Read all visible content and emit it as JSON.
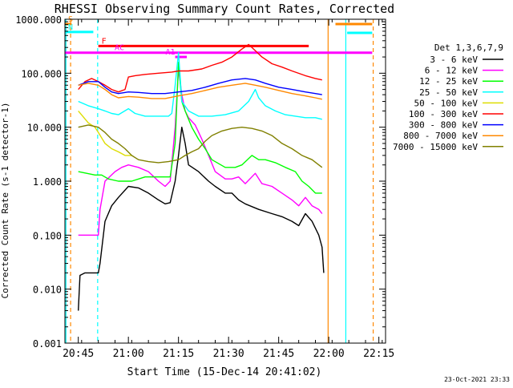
{
  "chart_data": {
    "type": "line",
    "title": "RHESSI Observing Summary Count Rates, Corrected",
    "xlabel": "Start Time (15-Dec-14 20:41:02)",
    "ylabel": "Corrected Count Rate (s-1 detector-1)",
    "x_unit": "minutes since 20:41:02",
    "xlim": [
      0,
      96
    ],
    "ylim": [
      0.001,
      1000
    ],
    "y_scale": "log",
    "x_ticks": [
      {
        "value": 4,
        "label": "20:45"
      },
      {
        "value": 19,
        "label": "21:00"
      },
      {
        "value": 34,
        "label": "21:15"
      },
      {
        "value": 49,
        "label": "21:30"
      },
      {
        "value": 64,
        "label": "21:45"
      },
      {
        "value": 79,
        "label": "22:00"
      },
      {
        "value": 94,
        "label": "22:15"
      }
    ],
    "y_ticks": [
      {
        "value": 1000,
        "label": "1000.000"
      },
      {
        "value": 100,
        "label": "100.000"
      },
      {
        "value": 10,
        "label": "10.000"
      },
      {
        "value": 1,
        "label": "1.000"
      },
      {
        "value": 0.1,
        "label": "0.100"
      },
      {
        "value": 0.01,
        "label": "0.010"
      },
      {
        "value": 0.001,
        "label": "0.001"
      }
    ],
    "legend_title": "Det 1,3,6,7,9",
    "legend_position": "right",
    "footer_date": "23-Oct-2021 23:33",
    "series": [
      {
        "name": "3 - 6 keV",
        "color": "#000000",
        "points": [
          [
            4,
            0.004
          ],
          [
            4.5,
            0.018
          ],
          [
            6,
            0.02
          ],
          [
            10,
            0.02
          ],
          [
            10.5,
            0.03
          ],
          [
            12,
            0.18
          ],
          [
            14,
            0.35
          ],
          [
            16,
            0.5
          ],
          [
            19,
            0.8
          ],
          [
            22,
            0.75
          ],
          [
            25,
            0.6
          ],
          [
            28,
            0.45
          ],
          [
            30,
            0.38
          ],
          [
            31.5,
            0.4
          ],
          [
            33,
            1.0
          ],
          [
            34,
            3.0
          ],
          [
            35,
            10.0
          ],
          [
            36,
            5.0
          ],
          [
            37,
            2.0
          ],
          [
            40,
            1.5
          ],
          [
            43,
            1.0
          ],
          [
            45,
            0.8
          ],
          [
            48,
            0.6
          ],
          [
            50,
            0.6
          ],
          [
            52,
            0.45
          ],
          [
            54,
            0.38
          ],
          [
            58,
            0.3
          ],
          [
            62,
            0.25
          ],
          [
            65,
            0.22
          ],
          [
            68,
            0.18
          ],
          [
            70,
            0.15
          ],
          [
            72,
            0.25
          ],
          [
            74,
            0.18
          ],
          [
            76,
            0.1
          ],
          [
            77,
            0.06
          ],
          [
            77.5,
            0.02
          ]
        ]
      },
      {
        "name": "6 - 12 keV",
        "color": "#ff00ff",
        "points": [
          [
            4,
            0.1
          ],
          [
            10,
            0.1
          ],
          [
            10.5,
            0.3
          ],
          [
            12,
            1.0
          ],
          [
            15,
            1.5
          ],
          [
            17,
            1.8
          ],
          [
            19,
            2.0
          ],
          [
            22,
            1.8
          ],
          [
            25,
            1.5
          ],
          [
            28,
            1.0
          ],
          [
            30,
            0.8
          ],
          [
            31.5,
            1.0
          ],
          [
            33,
            10
          ],
          [
            34,
            120
          ],
          [
            35,
            40
          ],
          [
            36,
            20
          ],
          [
            37,
            15
          ],
          [
            39,
            11
          ],
          [
            41,
            6
          ],
          [
            43,
            3
          ],
          [
            45,
            1.5
          ],
          [
            48,
            1.1
          ],
          [
            50,
            1.1
          ],
          [
            52,
            1.2
          ],
          [
            54,
            0.9
          ],
          [
            57,
            1.4
          ],
          [
            59,
            0.9
          ],
          [
            62,
            0.8
          ],
          [
            65,
            0.6
          ],
          [
            68,
            0.45
          ],
          [
            70,
            0.35
          ],
          [
            72,
            0.5
          ],
          [
            74,
            0.35
          ],
          [
            76,
            0.3
          ],
          [
            77,
            0.25
          ]
        ]
      },
      {
        "name": "12 - 25 keV",
        "color": "#00ff00",
        "points": [
          [
            4,
            1.5
          ],
          [
            9,
            1.3
          ],
          [
            11,
            1.3
          ],
          [
            13,
            1.1
          ],
          [
            16,
            1.0
          ],
          [
            20,
            1.0
          ],
          [
            24,
            1.2
          ],
          [
            28,
            1.2
          ],
          [
            31.5,
            1.2
          ],
          [
            33,
            5
          ],
          [
            34,
            160
          ],
          [
            35,
            30
          ],
          [
            36,
            20
          ],
          [
            38,
            10
          ],
          [
            40,
            6
          ],
          [
            42,
            4
          ],
          [
            44,
            2.5
          ],
          [
            48,
            1.8
          ],
          [
            51,
            1.8
          ],
          [
            53,
            2.0
          ],
          [
            56,
            3
          ],
          [
            58,
            2.5
          ],
          [
            60,
            2.5
          ],
          [
            63,
            2.2
          ],
          [
            66,
            1.8
          ],
          [
            69,
            1.5
          ],
          [
            71,
            1.0
          ],
          [
            73,
            0.8
          ],
          [
            75,
            0.6
          ],
          [
            77,
            0.6
          ]
        ]
      },
      {
        "name": "25 - 50 keV",
        "color": "#00ffff",
        "points": [
          [
            4,
            30
          ],
          [
            7,
            25
          ],
          [
            10,
            22
          ],
          [
            12,
            20
          ],
          [
            14,
            18
          ],
          [
            16,
            17
          ],
          [
            19,
            22
          ],
          [
            21,
            18
          ],
          [
            24,
            16
          ],
          [
            28,
            16
          ],
          [
            31,
            16
          ],
          [
            32,
            18
          ],
          [
            33,
            60
          ],
          [
            34,
            240
          ],
          [
            35,
            30
          ],
          [
            37,
            20
          ],
          [
            40,
            16
          ],
          [
            44,
            16
          ],
          [
            48,
            17
          ],
          [
            52,
            20
          ],
          [
            55,
            30
          ],
          [
            57,
            50
          ],
          [
            58,
            35
          ],
          [
            60,
            25
          ],
          [
            63,
            20
          ],
          [
            66,
            17
          ],
          [
            69,
            16
          ],
          [
            72,
            15
          ],
          [
            75,
            15
          ],
          [
            77,
            14
          ]
        ]
      },
      {
        "name": "50 - 100 keV",
        "color": "#dddd00",
        "points": [
          [
            4,
            20
          ],
          [
            7,
            12
          ],
          [
            9,
            10
          ],
          [
            10,
            8
          ],
          [
            12,
            5
          ],
          [
            14,
            4
          ],
          [
            16,
            3.5
          ],
          [
            18,
            3.0
          ],
          [
            20,
            3.0
          ]
        ]
      },
      {
        "name": "100 - 300 keV",
        "color": "#ff0000",
        "points": [
          [
            4,
            50
          ],
          [
            6,
            70
          ],
          [
            8,
            80
          ],
          [
            10,
            70
          ],
          [
            12,
            60
          ],
          [
            14,
            50
          ],
          [
            16,
            45
          ],
          [
            18,
            50
          ],
          [
            19,
            85
          ],
          [
            21,
            90
          ],
          [
            24,
            95
          ],
          [
            28,
            100
          ],
          [
            32,
            105
          ],
          [
            34,
            110
          ],
          [
            37,
            110
          ],
          [
            41,
            120
          ],
          [
            44,
            140
          ],
          [
            47,
            160
          ],
          [
            50,
            200
          ],
          [
            53,
            280
          ],
          [
            55,
            340
          ],
          [
            56,
            300
          ],
          [
            59,
            200
          ],
          [
            62,
            150
          ],
          [
            65,
            130
          ],
          [
            68,
            110
          ],
          [
            72,
            90
          ],
          [
            75,
            80
          ],
          [
            77,
            75
          ]
        ]
      },
      {
        "name": "300 - 800 keV",
        "color": "#0000ff",
        "points": [
          [
            4,
            60
          ],
          [
            7,
            70
          ],
          [
            10,
            70
          ],
          [
            12,
            55
          ],
          [
            14,
            45
          ],
          [
            16,
            42
          ],
          [
            19,
            45
          ],
          [
            22,
            44
          ],
          [
            26,
            42
          ],
          [
            30,
            42
          ],
          [
            34,
            45
          ],
          [
            38,
            48
          ],
          [
            42,
            55
          ],
          [
            46,
            65
          ],
          [
            50,
            75
          ],
          [
            54,
            80
          ],
          [
            57,
            75
          ],
          [
            60,
            65
          ],
          [
            64,
            55
          ],
          [
            68,
            50
          ],
          [
            72,
            45
          ],
          [
            75,
            42
          ],
          [
            77,
            40
          ]
        ]
      },
      {
        "name": "800 - 7000 keV",
        "color": "#ff8800",
        "points": [
          [
            4,
            60
          ],
          [
            7,
            65
          ],
          [
            10,
            60
          ],
          [
            12,
            50
          ],
          [
            14,
            40
          ],
          [
            16,
            35
          ],
          [
            19,
            37
          ],
          [
            22,
            36
          ],
          [
            26,
            34
          ],
          [
            30,
            34
          ],
          [
            34,
            38
          ],
          [
            38,
            42
          ],
          [
            42,
            48
          ],
          [
            46,
            55
          ],
          [
            50,
            60
          ],
          [
            54,
            65
          ],
          [
            57,
            60
          ],
          [
            60,
            55
          ],
          [
            64,
            48
          ],
          [
            68,
            42
          ],
          [
            72,
            38
          ],
          [
            75,
            35
          ],
          [
            77,
            33
          ]
        ]
      },
      {
        "name": "7000 - 15000 keV",
        "color": "#808000",
        "points": [
          [
            4,
            10
          ],
          [
            7,
            11
          ],
          [
            10,
            10
          ],
          [
            12,
            8
          ],
          [
            14,
            6
          ],
          [
            16,
            5
          ],
          [
            18,
            4
          ],
          [
            20,
            3
          ],
          [
            22,
            2.5
          ],
          [
            25,
            2.3
          ],
          [
            28,
            2.2
          ],
          [
            31,
            2.3
          ],
          [
            34,
            2.5
          ],
          [
            36,
            3
          ],
          [
            38,
            3.5
          ],
          [
            40,
            4
          ],
          [
            42,
            5.5
          ],
          [
            44,
            7
          ],
          [
            47,
            8.5
          ],
          [
            50,
            9.5
          ],
          [
            53,
            10
          ],
          [
            56,
            9.5
          ],
          [
            59,
            8.5
          ],
          [
            62,
            7
          ],
          [
            65,
            5
          ],
          [
            68,
            4
          ],
          [
            71,
            3
          ],
          [
            74,
            2.5
          ],
          [
            76,
            2
          ],
          [
            77,
            1.8
          ]
        ]
      }
    ],
    "attenuator_states": [
      {
        "label": "S",
        "color": "#ff8800",
        "x_start": 0,
        "x_end": 2,
        "y": 1400
      },
      {
        "label": "N",
        "color": "#00ffff",
        "x_start": 0,
        "x_end": 8.5,
        "y": 580
      },
      {
        "label": "F",
        "color": "#ff0000",
        "x_start": 10,
        "x_end": 73,
        "y": 320
      },
      {
        "label": "AC",
        "color": "#ff00ff",
        "x_start": 0,
        "x_end": 92,
        "y": 240
      },
      {
        "label": "A1",
        "color": "#ff00ff",
        "x_start": 33,
        "x_end": 36.5,
        "y": 200
      },
      {
        "label": "",
        "color": "#ff8800",
        "x_start": 81,
        "x_end": 92,
        "y": 1000
      },
      {
        "label": "",
        "color": "#00ffff",
        "x_start": 84.5,
        "x_end": 92,
        "y": 560
      }
    ],
    "vertical_markers": [
      {
        "x": 0.3,
        "color": "#00ffff",
        "style": "solid"
      },
      {
        "x": 1.7,
        "color": "#ff8800",
        "style": "dashed"
      },
      {
        "x": 9.8,
        "color": "#00ffff",
        "style": "dashed"
      },
      {
        "x": 78.8,
        "color": "#ff8800",
        "style": "solid"
      },
      {
        "x": 84.1,
        "color": "#00ffff",
        "style": "solid"
      },
      {
        "x": 92.3,
        "color": "#ff8800",
        "style": "dashed"
      }
    ]
  }
}
